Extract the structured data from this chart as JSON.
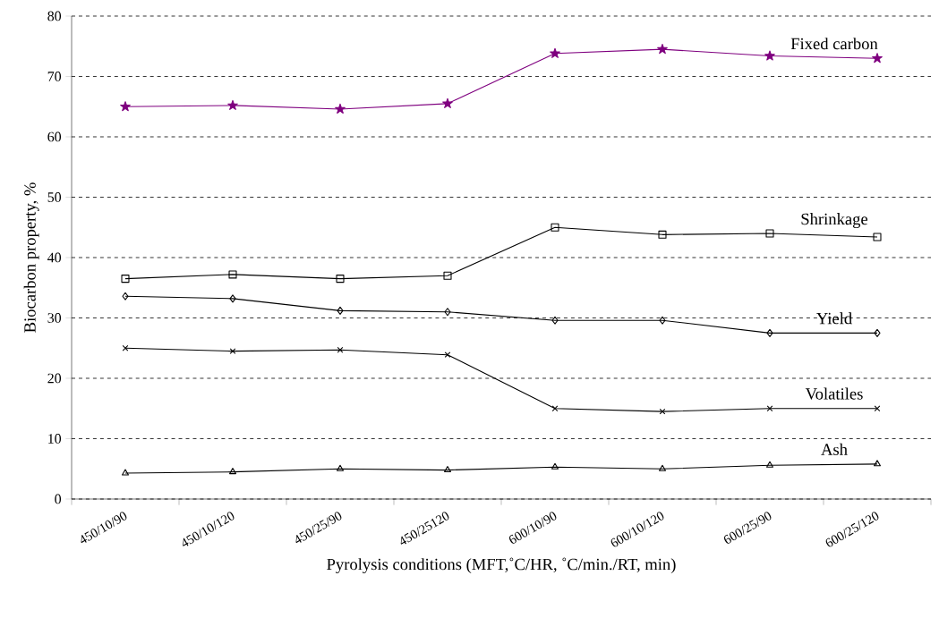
{
  "chart_data": {
    "type": "line",
    "xlabel": "Pyrolysis conditions (MFT,˚C/HR, ˚C/min./RT, min)",
    "ylabel": "Biocarbon property, %",
    "categories": [
      "450/10/90",
      "450/10/120",
      "450/25/90",
      "450/25120",
      "600/10/90",
      "600/10/120",
      "600/25/90",
      "600/25/120"
    ],
    "ylim": [
      0,
      80
    ],
    "yticks": [
      0,
      10,
      20,
      30,
      40,
      50,
      60,
      70,
      80
    ],
    "grid": "y",
    "legend": false,
    "line_style": "solid",
    "series": [
      {
        "name": "Fixed carbon",
        "color": "#7f007f",
        "marker": "star",
        "values": [
          65.0,
          65.2,
          64.6,
          65.5,
          73.8,
          74.5,
          73.4,
          73.0
        ]
      },
      {
        "name": "Shrinkage",
        "color": "#000000",
        "marker": "square",
        "values": [
          36.5,
          37.2,
          36.5,
          37.0,
          45.0,
          43.8,
          44.0,
          43.4
        ]
      },
      {
        "name": "Yield",
        "color": "#000000",
        "marker": "diamond",
        "values": [
          33.6,
          33.2,
          31.2,
          31.0,
          29.6,
          29.6,
          27.5,
          27.5
        ]
      },
      {
        "name": "Volatiles",
        "color": "#000000",
        "marker": "cross",
        "values": [
          25.0,
          24.5,
          24.7,
          23.9,
          15.0,
          14.5,
          15.0,
          15.0
        ]
      },
      {
        "name": "Ash",
        "color": "#000000",
        "marker": "triangle",
        "values": [
          4.3,
          4.5,
          5.0,
          4.8,
          5.3,
          5.0,
          5.6,
          5.8
        ]
      }
    ]
  }
}
